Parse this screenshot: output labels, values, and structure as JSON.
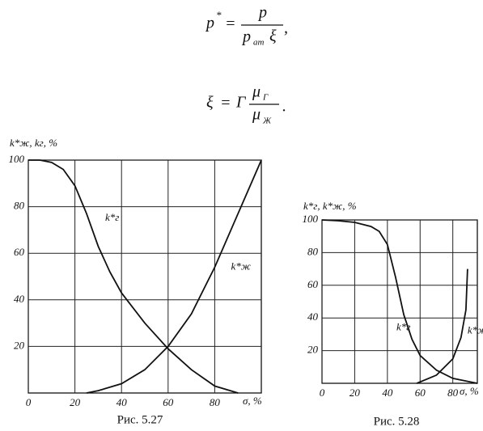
{
  "formulas": [
    {
      "lhs": "p",
      "lhs_sup": "*",
      "eq": "=",
      "num": "p",
      "den": "p",
      "den_sub": "ат",
      "den_tail": "ξ",
      "end": ","
    },
    {
      "lhs": "ξ",
      "eq": "=",
      "coef": "Γ",
      "num": "μ",
      "num_sub": "Г",
      "den": "μ",
      "den_sub": "Ж",
      "end": "."
    }
  ],
  "chart_data": [
    {
      "type": "line",
      "caption": "Рис. 5.27",
      "y_label": "k*ж, kг, %",
      "x_label": "σ, %",
      "xlim": [
        0,
        100
      ],
      "ylim": [
        0,
        100
      ],
      "xticks": [
        0,
        20,
        40,
        60,
        80
      ],
      "yticks": [
        20,
        40,
        60,
        80,
        100
      ],
      "grid": true,
      "series": [
        {
          "name": "k*г",
          "color": "#111111",
          "x": [
            0,
            5,
            10,
            15,
            20,
            25,
            30,
            35,
            40,
            50,
            60,
            70,
            80,
            90
          ],
          "values": [
            100,
            100,
            99,
            96,
            89,
            77,
            63,
            52,
            43,
            30,
            19,
            10,
            3,
            0
          ]
        },
        {
          "name": "k*ж",
          "color": "#111111",
          "x": [
            25,
            30,
            40,
            50,
            60,
            70,
            80,
            90,
            100
          ],
          "values": [
            0,
            1,
            4,
            10,
            20,
            34,
            54,
            77,
            100
          ]
        }
      ]
    },
    {
      "type": "line",
      "caption": "Рис. 5.28",
      "y_label": "k*г, k*ж, %",
      "x_label": "σ, %",
      "xlim": [
        0,
        95
      ],
      "ylim": [
        0,
        100
      ],
      "xticks": [
        0,
        20,
        40,
        60,
        80
      ],
      "yticks": [
        20,
        40,
        60,
        80,
        100
      ],
      "grid": true,
      "series": [
        {
          "name": "k*г",
          "color": "#111111",
          "x": [
            0,
            10,
            20,
            30,
            35,
            40,
            45,
            50,
            55,
            60,
            70,
            80,
            90,
            95
          ],
          "values": [
            100,
            99.5,
            98.5,
            96,
            93,
            85,
            65,
            42,
            27,
            17,
            8,
            3,
            1,
            0
          ]
        },
        {
          "name": "k*ж",
          "color": "#111111",
          "x": [
            58,
            70,
            80,
            85,
            88,
            89
          ],
          "values": [
            0,
            5,
            15,
            28,
            45,
            70
          ]
        }
      ]
    }
  ]
}
